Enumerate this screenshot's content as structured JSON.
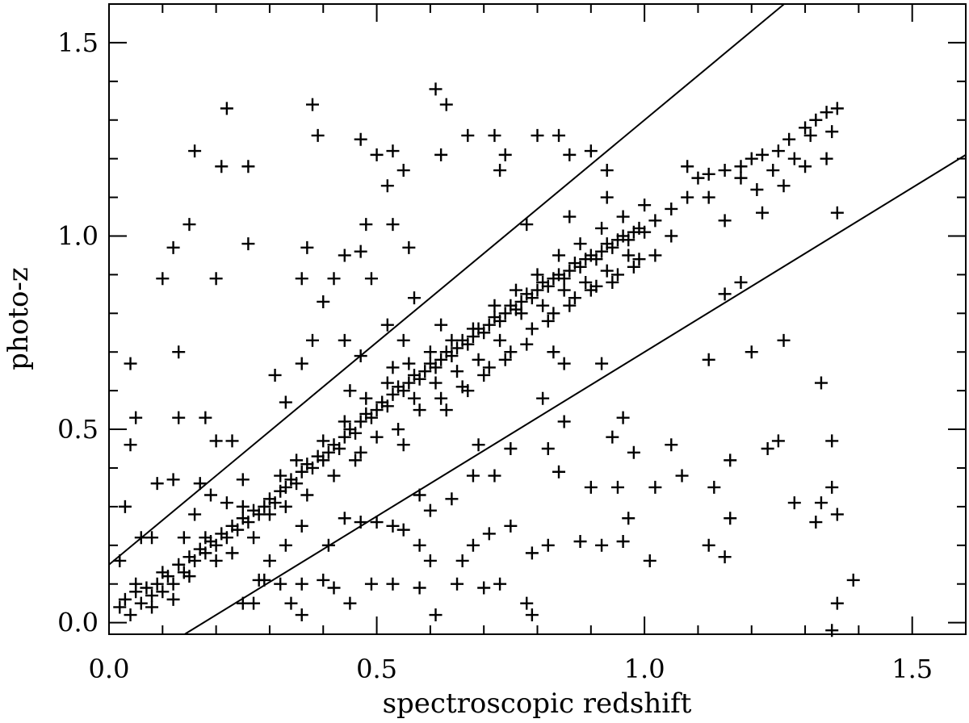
{
  "chart_data": {
    "type": "scatter",
    "marker": "plus",
    "xlabel": "spectroscopic redshift",
    "ylabel": "photo-z",
    "xlim": [
      0,
      1.6
    ],
    "ylim": [
      -0.03,
      1.6
    ],
    "xticks": [
      {
        "value": 0.0,
        "label": "0.0"
      },
      {
        "value": 0.5,
        "label": "0.5"
      },
      {
        "value": 1.0,
        "label": "1.0"
      },
      {
        "value": 1.5,
        "label": "1.5"
      }
    ],
    "yticks": [
      {
        "value": 0.0,
        "label": "0.0"
      },
      {
        "value": 0.5,
        "label": "0.5"
      },
      {
        "value": 1.0,
        "label": "1.0"
      },
      {
        "value": 1.5,
        "label": "1.5"
      }
    ],
    "reference_lines": [
      {
        "slope": 1.15,
        "intercept": 0.15
      },
      {
        "slope": 0.85,
        "intercept": -0.15
      }
    ],
    "points": [
      [
        0.02,
        0.04
      ],
      [
        0.03,
        0.06
      ],
      [
        0.04,
        0.02
      ],
      [
        0.05,
        0.08
      ],
      [
        0.06,
        0.05
      ],
      [
        0.07,
        0.09
      ],
      [
        0.08,
        0.07
      ],
      [
        0.09,
        0.1
      ],
      [
        0.1,
        0.08
      ],
      [
        0.11,
        0.12
      ],
      [
        0.12,
        0.1
      ],
      [
        0.13,
        0.15
      ],
      [
        0.14,
        0.13
      ],
      [
        0.15,
        0.17
      ],
      [
        0.16,
        0.16
      ],
      [
        0.17,
        0.19
      ],
      [
        0.18,
        0.18
      ],
      [
        0.19,
        0.21
      ],
      [
        0.2,
        0.2
      ],
      [
        0.21,
        0.23
      ],
      [
        0.22,
        0.22
      ],
      [
        0.23,
        0.25
      ],
      [
        0.24,
        0.24
      ],
      [
        0.25,
        0.27
      ],
      [
        0.26,
        0.26
      ],
      [
        0.27,
        0.29
      ],
      [
        0.28,
        0.28
      ],
      [
        0.29,
        0.3
      ],
      [
        0.3,
        0.32
      ],
      [
        0.31,
        0.31
      ],
      [
        0.32,
        0.34
      ],
      [
        0.33,
        0.35
      ],
      [
        0.34,
        0.37
      ],
      [
        0.35,
        0.36
      ],
      [
        0.36,
        0.39
      ],
      [
        0.37,
        0.41
      ],
      [
        0.38,
        0.4
      ],
      [
        0.39,
        0.43
      ],
      [
        0.4,
        0.42
      ],
      [
        0.41,
        0.44
      ],
      [
        0.42,
        0.46
      ],
      [
        0.43,
        0.45
      ],
      [
        0.44,
        0.48
      ],
      [
        0.45,
        0.5
      ],
      [
        0.46,
        0.49
      ],
      [
        0.47,
        0.52
      ],
      [
        0.48,
        0.54
      ],
      [
        0.49,
        0.53
      ],
      [
        0.5,
        0.55
      ],
      [
        0.51,
        0.57
      ],
      [
        0.52,
        0.56
      ],
      [
        0.53,
        0.59
      ],
      [
        0.54,
        0.61
      ],
      [
        0.55,
        0.6
      ],
      [
        0.56,
        0.62
      ],
      [
        0.57,
        0.64
      ],
      [
        0.58,
        0.63
      ],
      [
        0.59,
        0.65
      ],
      [
        0.6,
        0.67
      ],
      [
        0.61,
        0.66
      ],
      [
        0.62,
        0.68
      ],
      [
        0.63,
        0.7
      ],
      [
        0.64,
        0.69
      ],
      [
        0.65,
        0.71
      ],
      [
        0.66,
        0.73
      ],
      [
        0.67,
        0.72
      ],
      [
        0.68,
        0.74
      ],
      [
        0.69,
        0.76
      ],
      [
        0.7,
        0.75
      ],
      [
        0.71,
        0.77
      ],
      [
        0.72,
        0.79
      ],
      [
        0.73,
        0.78
      ],
      [
        0.74,
        0.8
      ],
      [
        0.75,
        0.82
      ],
      [
        0.76,
        0.81
      ],
      [
        0.77,
        0.83
      ],
      [
        0.78,
        0.85
      ],
      [
        0.79,
        0.84
      ],
      [
        0.8,
        0.86
      ],
      [
        0.81,
        0.88
      ],
      [
        0.82,
        0.87
      ],
      [
        0.83,
        0.89
      ],
      [
        0.84,
        0.9
      ],
      [
        0.85,
        0.89
      ],
      [
        0.86,
        0.91
      ],
      [
        0.87,
        0.93
      ],
      [
        0.88,
        0.92
      ],
      [
        0.89,
        0.94
      ],
      [
        0.9,
        0.95
      ],
      [
        0.91,
        0.94
      ],
      [
        0.92,
        0.96
      ],
      [
        0.93,
        0.98
      ],
      [
        0.94,
        0.97
      ],
      [
        0.95,
        0.99
      ],
      [
        0.96,
        1.0
      ],
      [
        0.97,
        0.99
      ],
      [
        0.98,
        1.01
      ],
      [
        0.99,
        1.02
      ],
      [
        1.0,
        1.01
      ],
      [
        1.02,
        1.04
      ],
      [
        1.05,
        1.07
      ],
      [
        1.08,
        1.1
      ],
      [
        1.1,
        1.15
      ],
      [
        1.12,
        1.16
      ],
      [
        1.15,
        1.17
      ],
      [
        1.18,
        1.18
      ],
      [
        1.2,
        1.2
      ],
      [
        1.22,
        1.21
      ],
      [
        1.25,
        1.22
      ],
      [
        1.27,
        1.25
      ],
      [
        1.3,
        1.28
      ],
      [
        1.32,
        1.3
      ],
      [
        1.34,
        1.32
      ],
      [
        1.36,
        1.33
      ],
      [
        0.05,
        0.1
      ],
      [
        0.08,
        0.04
      ],
      [
        0.1,
        0.13
      ],
      [
        0.12,
        0.06
      ],
      [
        0.15,
        0.12
      ],
      [
        0.18,
        0.22
      ],
      [
        0.2,
        0.16
      ],
      [
        0.23,
        0.18
      ],
      [
        0.25,
        0.3
      ],
      [
        0.27,
        0.22
      ],
      [
        0.3,
        0.28
      ],
      [
        0.32,
        0.38
      ],
      [
        0.33,
        0.3
      ],
      [
        0.35,
        0.42
      ],
      [
        0.37,
        0.33
      ],
      [
        0.4,
        0.47
      ],
      [
        0.42,
        0.38
      ],
      [
        0.44,
        0.52
      ],
      [
        0.46,
        0.42
      ],
      [
        0.48,
        0.58
      ],
      [
        0.5,
        0.48
      ],
      [
        0.52,
        0.62
      ],
      [
        0.54,
        0.5
      ],
      [
        0.56,
        0.67
      ],
      [
        0.58,
        0.55
      ],
      [
        0.6,
        0.7
      ],
      [
        0.62,
        0.58
      ],
      [
        0.64,
        0.73
      ],
      [
        0.66,
        0.61
      ],
      [
        0.68,
        0.76
      ],
      [
        0.7,
        0.64
      ],
      [
        0.72,
        0.82
      ],
      [
        0.74,
        0.68
      ],
      [
        0.76,
        0.86
      ],
      [
        0.78,
        0.72
      ],
      [
        0.8,
        0.9
      ],
      [
        0.82,
        0.78
      ],
      [
        0.84,
        0.95
      ],
      [
        0.86,
        0.82
      ],
      [
        0.88,
        0.98
      ],
      [
        0.9,
        0.86
      ],
      [
        0.92,
        1.02
      ],
      [
        0.94,
        0.88
      ],
      [
        0.96,
        1.05
      ],
      [
        0.98,
        0.92
      ],
      [
        1.0,
        1.08
      ],
      [
        1.02,
        0.95
      ],
      [
        1.05,
        1.0
      ],
      [
        1.08,
        1.18
      ],
      [
        1.12,
        1.1
      ],
      [
        1.15,
        1.04
      ],
      [
        1.18,
        1.15
      ],
      [
        1.21,
        1.12
      ],
      [
        1.24,
        1.17
      ],
      [
        1.28,
        1.2
      ],
      [
        1.31,
        1.26
      ],
      [
        1.35,
        1.27
      ],
      [
        0.45,
        0.6
      ],
      [
        0.47,
        0.44
      ],
      [
        0.53,
        0.66
      ],
      [
        0.55,
        0.46
      ],
      [
        0.57,
        0.58
      ],
      [
        0.61,
        0.62
      ],
      [
        0.63,
        0.55
      ],
      [
        0.65,
        0.65
      ],
      [
        0.67,
        0.6
      ],
      [
        0.69,
        0.68
      ],
      [
        0.71,
        0.66
      ],
      [
        0.73,
        0.73
      ],
      [
        0.75,
        0.7
      ],
      [
        0.77,
        0.8
      ],
      [
        0.79,
        0.76
      ],
      [
        0.81,
        0.82
      ],
      [
        0.83,
        0.8
      ],
      [
        0.85,
        0.86
      ],
      [
        0.87,
        0.84
      ],
      [
        0.89,
        0.88
      ],
      [
        0.91,
        0.87
      ],
      [
        0.93,
        0.91
      ],
      [
        0.95,
        0.9
      ],
      [
        0.97,
        0.95
      ],
      [
        0.99,
        0.94
      ],
      [
        0.22,
        1.33
      ],
      [
        0.38,
        1.34
      ],
      [
        0.39,
        1.26
      ],
      [
        0.16,
        1.22
      ],
      [
        0.21,
        1.18
      ],
      [
        0.26,
        1.18
      ],
      [
        0.47,
        1.25
      ],
      [
        0.5,
        1.21
      ],
      [
        0.53,
        1.22
      ],
      [
        0.52,
        1.13
      ],
      [
        0.55,
        1.17
      ],
      [
        0.61,
        1.38
      ],
      [
        0.63,
        1.34
      ],
      [
        0.62,
        1.21
      ],
      [
        0.67,
        1.26
      ],
      [
        0.72,
        1.26
      ],
      [
        0.74,
        1.21
      ],
      [
        0.73,
        1.17
      ],
      [
        0.8,
        1.26
      ],
      [
        0.84,
        1.26
      ],
      [
        0.86,
        1.21
      ],
      [
        0.9,
        1.22
      ],
      [
        0.93,
        1.17
      ],
      [
        0.78,
        1.03
      ],
      [
        0.86,
        1.05
      ],
      [
        0.93,
        1.1
      ],
      [
        0.15,
        1.03
      ],
      [
        0.12,
        0.97
      ],
      [
        0.26,
        0.98
      ],
      [
        0.37,
        0.97
      ],
      [
        0.42,
        0.89
      ],
      [
        0.44,
        0.95
      ],
      [
        0.47,
        0.96
      ],
      [
        0.48,
        1.03
      ],
      [
        0.53,
        1.03
      ],
      [
        0.56,
        0.97
      ],
      [
        0.1,
        0.89
      ],
      [
        0.2,
        0.89
      ],
      [
        0.36,
        0.89
      ],
      [
        0.4,
        0.83
      ],
      [
        0.49,
        0.89
      ],
      [
        0.57,
        0.84
      ],
      [
        0.13,
        0.7
      ],
      [
        0.04,
        0.67
      ],
      [
        0.05,
        0.53
      ],
      [
        0.04,
        0.46
      ],
      [
        0.13,
        0.53
      ],
      [
        0.18,
        0.53
      ],
      [
        0.2,
        0.47
      ],
      [
        0.23,
        0.47
      ],
      [
        0.31,
        0.64
      ],
      [
        0.33,
        0.57
      ],
      [
        0.36,
        0.67
      ],
      [
        0.38,
        0.73
      ],
      [
        0.44,
        0.73
      ],
      [
        0.47,
        0.69
      ],
      [
        0.55,
        0.73
      ],
      [
        0.52,
        0.77
      ],
      [
        0.62,
        0.77
      ],
      [
        0.83,
        0.7
      ],
      [
        0.85,
        0.67
      ],
      [
        0.92,
        0.67
      ],
      [
        0.81,
        0.58
      ],
      [
        0.85,
        0.52
      ],
      [
        0.82,
        0.45
      ],
      [
        0.84,
        0.39
      ],
      [
        0.75,
        0.45
      ],
      [
        0.72,
        0.38
      ],
      [
        0.69,
        0.46
      ],
      [
        0.68,
        0.38
      ],
      [
        0.64,
        0.32
      ],
      [
        0.6,
        0.29
      ],
      [
        0.58,
        0.33
      ],
      [
        0.55,
        0.24
      ],
      [
        0.53,
        0.25
      ],
      [
        0.5,
        0.26
      ],
      [
        0.47,
        0.26
      ],
      [
        0.44,
        0.27
      ],
      [
        0.41,
        0.2
      ],
      [
        0.36,
        0.25
      ],
      [
        0.33,
        0.2
      ],
      [
        0.3,
        0.16
      ],
      [
        0.28,
        0.11
      ],
      [
        0.25,
        0.05
      ],
      [
        0.29,
        0.11
      ],
      [
        0.34,
        0.05
      ],
      [
        0.36,
        0.02
      ],
      [
        0.42,
        0.09
      ],
      [
        0.45,
        0.05
      ],
      [
        0.49,
        0.1
      ],
      [
        0.53,
        0.1
      ],
      [
        0.58,
        0.09
      ],
      [
        0.61,
        0.02
      ],
      [
        0.65,
        0.1
      ],
      [
        0.7,
        0.09
      ],
      [
        0.73,
        0.1
      ],
      [
        0.78,
        0.05
      ],
      [
        0.79,
        0.02
      ],
      [
        0.58,
        0.2
      ],
      [
        0.6,
        0.16
      ],
      [
        0.66,
        0.16
      ],
      [
        0.68,
        0.2
      ],
      [
        0.71,
        0.23
      ],
      [
        0.75,
        0.25
      ],
      [
        0.79,
        0.18
      ],
      [
        0.82,
        0.2
      ],
      [
        0.88,
        0.21
      ],
      [
        0.92,
        0.2
      ],
      [
        0.96,
        0.21
      ],
      [
        1.01,
        0.16
      ],
      [
        0.9,
        0.35
      ],
      [
        0.95,
        0.35
      ],
      [
        1.02,
        0.35
      ],
      [
        0.97,
        0.27
      ],
      [
        0.98,
        0.44
      ],
      [
        0.94,
        0.48
      ],
      [
        0.96,
        0.53
      ],
      [
        1.05,
        0.46
      ],
      [
        1.07,
        0.38
      ],
      [
        1.16,
        0.42
      ],
      [
        1.13,
        0.35
      ],
      [
        1.16,
        0.27
      ],
      [
        1.12,
        0.2
      ],
      [
        1.15,
        0.17
      ],
      [
        1.25,
        0.47
      ],
      [
        1.23,
        0.45
      ],
      [
        1.28,
        0.31
      ],
      [
        1.33,
        0.31
      ],
      [
        1.32,
        0.26
      ],
      [
        1.35,
        0.35
      ],
      [
        1.36,
        0.28
      ],
      [
        1.35,
        0.47
      ],
      [
        1.33,
        0.62
      ],
      [
        1.36,
        0.05
      ],
      [
        1.35,
        -0.02
      ],
      [
        1.39,
        0.11
      ],
      [
        1.26,
        0.73
      ],
      [
        1.2,
        0.7
      ],
      [
        1.12,
        0.68
      ],
      [
        1.15,
        0.85
      ],
      [
        1.18,
        0.88
      ],
      [
        1.22,
        1.06
      ],
      [
        1.26,
        1.13
      ],
      [
        1.3,
        1.18
      ],
      [
        1.34,
        1.2
      ],
      [
        1.36,
        1.06
      ],
      [
        0.03,
        0.3
      ],
      [
        0.02,
        0.16
      ],
      [
        0.17,
        0.36
      ],
      [
        0.19,
        0.33
      ],
      [
        0.09,
        0.36
      ],
      [
        0.12,
        0.37
      ],
      [
        0.16,
        0.28
      ],
      [
        0.14,
        0.22
      ],
      [
        0.22,
        0.31
      ],
      [
        0.25,
        0.37
      ],
      [
        0.06,
        0.22
      ],
      [
        0.08,
        0.22
      ],
      [
        0.27,
        0.05
      ],
      [
        0.32,
        0.1
      ],
      [
        0.36,
        0.1
      ],
      [
        0.4,
        0.11
      ]
    ]
  }
}
